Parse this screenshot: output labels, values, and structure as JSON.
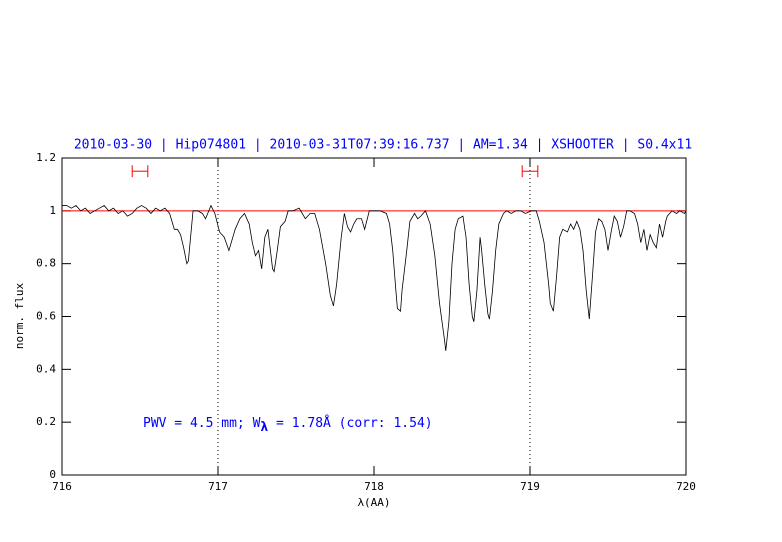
{
  "chart_data": {
    "type": "line",
    "title": "2010-03-30 | Hip074801 | 2010-03-31T07:39:16.737 | AM=1.34 | XSHOOTER | S0.4x11",
    "xlabel": "λ(AA)",
    "ylabel": "norm. flux",
    "annotation": [
      "PWV = 4.5 mm; W",
      "λ",
      " = 1.78Å (corr: 1.54)"
    ],
    "annotation_color": "#0000ff",
    "xlim": [
      716,
      720
    ],
    "ylim": [
      0,
      1.2
    ],
    "xticks": [
      716,
      717,
      718,
      719,
      720
    ],
    "yticks": [
      0,
      0.2,
      0.4,
      0.6,
      0.8,
      1,
      1.2
    ],
    "hline": {
      "y": 1,
      "color": "#ff0000"
    },
    "vlines": [
      717,
      719
    ],
    "markers": [
      {
        "x": [
          716.45,
          716.55
        ],
        "y": 1.15,
        "color": "#ff0000"
      },
      {
        "x": [
          718.95,
          719.05
        ],
        "y": 1.15,
        "color": "#ff0000"
      }
    ],
    "x": [
      716.0,
      716.03,
      716.06,
      716.09,
      716.12,
      716.15,
      716.18,
      716.21,
      716.24,
      716.27,
      716.3,
      716.33,
      716.36,
      716.39,
      716.42,
      716.45,
      716.48,
      716.51,
      716.54,
      716.57,
      716.6,
      716.63,
      716.66,
      716.69,
      716.72,
      716.74,
      716.76,
      716.78,
      716.8,
      716.81,
      716.84,
      716.87,
      716.9,
      716.92,
      716.955,
      716.98,
      717.01,
      717.04,
      717.07,
      717.11,
      717.14,
      717.17,
      717.2,
      717.22,
      717.24,
      717.26,
      717.28,
      717.3,
      717.32,
      717.35,
      717.36,
      717.38,
      717.4,
      717.43,
      717.45,
      717.48,
      717.52,
      717.56,
      717.59,
      717.62,
      717.65,
      717.69,
      717.72,
      717.74,
      717.76,
      717.79,
      717.81,
      717.83,
      717.85,
      717.87,
      717.89,
      717.92,
      717.94,
      717.97,
      718.0,
      718.04,
      718.08,
      718.1,
      718.12,
      718.14,
      718.15,
      718.17,
      718.18,
      718.21,
      718.23,
      718.26,
      718.28,
      718.3,
      718.33,
      718.36,
      718.39,
      718.42,
      718.45,
      718.46,
      718.48,
      718.5,
      718.52,
      718.54,
      718.57,
      718.59,
      718.61,
      718.63,
      718.64,
      718.66,
      718.68,
      718.69,
      718.71,
      718.73,
      718.74,
      718.76,
      718.78,
      718.8,
      718.83,
      718.85,
      718.88,
      718.91,
      718.94,
      718.97,
      719.01,
      719.04,
      719.06,
      719.09,
      719.12,
      719.13,
      719.15,
      719.17,
      719.19,
      719.21,
      719.24,
      719.26,
      719.28,
      719.3,
      719.32,
      719.34,
      719.36,
      719.38,
      719.4,
      719.42,
      719.44,
      719.46,
      719.48,
      719.5,
      719.52,
      719.54,
      719.56,
      719.58,
      719.6,
      719.62,
      719.64,
      719.67,
      719.69,
      719.71,
      719.73,
      719.75,
      719.77,
      719.79,
      719.81,
      719.83,
      719.85,
      719.87,
      719.88,
      719.91,
      719.94,
      719.96,
      719.99,
      720.0
    ],
    "series": [
      {
        "color": "#000000",
        "values": [
          1.02,
          1.02,
          1.01,
          1.02,
          1.0,
          1.01,
          0.99,
          1.0,
          1.01,
          1.02,
          1.0,
          1.01,
          0.99,
          1.0,
          0.98,
          0.99,
          1.01,
          1.02,
          1.01,
          0.99,
          1.01,
          1.0,
          1.01,
          0.99,
          0.93,
          0.93,
          0.91,
          0.86,
          0.8,
          0.81,
          1.0,
          1.0,
          0.99,
          0.97,
          1.02,
          0.99,
          0.92,
          0.9,
          0.85,
          0.93,
          0.97,
          0.99,
          0.95,
          0.88,
          0.83,
          0.85,
          0.78,
          0.9,
          0.93,
          0.78,
          0.77,
          0.85,
          0.94,
          0.96,
          1.0,
          1.0,
          1.01,
          0.97,
          0.99,
          0.99,
          0.93,
          0.8,
          0.68,
          0.64,
          0.72,
          0.9,
          0.99,
          0.94,
          0.92,
          0.95,
          0.97,
          0.97,
          0.93,
          1.0,
          1.0,
          1.0,
          0.99,
          0.95,
          0.85,
          0.7,
          0.63,
          0.62,
          0.7,
          0.85,
          0.96,
          0.99,
          0.97,
          0.98,
          1.0,
          0.95,
          0.83,
          0.65,
          0.52,
          0.47,
          0.58,
          0.8,
          0.93,
          0.97,
          0.98,
          0.9,
          0.72,
          0.6,
          0.58,
          0.7,
          0.9,
          0.85,
          0.72,
          0.61,
          0.59,
          0.7,
          0.85,
          0.95,
          0.99,
          1.0,
          0.99,
          1.0,
          1.0,
          0.99,
          1.0,
          1.0,
          0.96,
          0.88,
          0.72,
          0.65,
          0.62,
          0.75,
          0.9,
          0.93,
          0.92,
          0.95,
          0.93,
          0.96,
          0.93,
          0.85,
          0.7,
          0.59,
          0.75,
          0.92,
          0.97,
          0.96,
          0.93,
          0.85,
          0.92,
          0.98,
          0.96,
          0.9,
          0.94,
          1.0,
          1.0,
          0.99,
          0.95,
          0.88,
          0.93,
          0.85,
          0.91,
          0.88,
          0.86,
          0.95,
          0.9,
          0.96,
          0.98,
          1.0,
          0.99,
          1.0,
          0.99,
          1.0
        ]
      }
    ]
  }
}
